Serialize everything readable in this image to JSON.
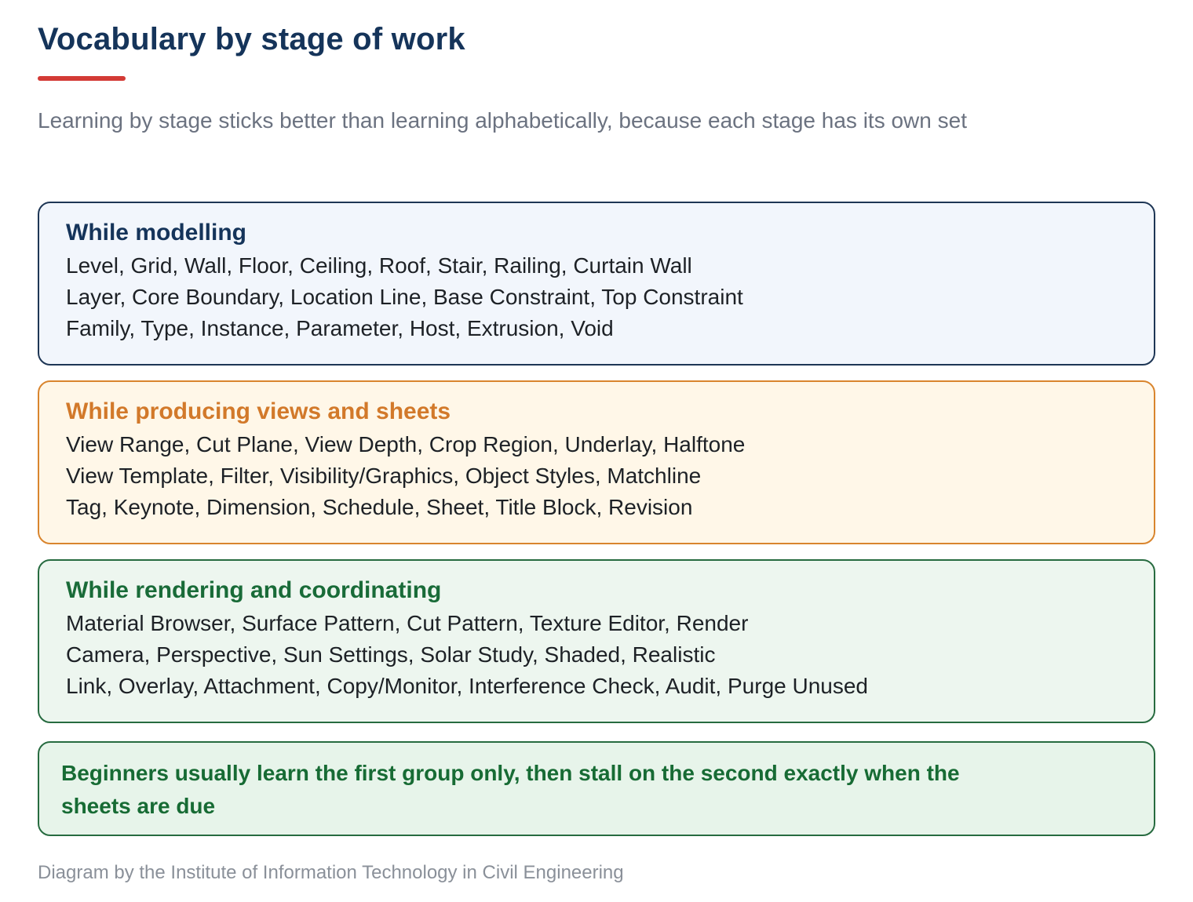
{
  "header": {
    "title": "Vocabulary by stage of work",
    "subtitle": "Learning by stage sticks better than learning alphabetically, because each stage has its own set"
  },
  "colors": {
    "title": "#15345a",
    "accent_rule": "#d33a35",
    "modelling_border": "#1e3655",
    "views_accent": "#d9852e",
    "render_accent": "#276b40"
  },
  "stages": [
    {
      "heading": "While modelling",
      "lines": [
        "Level, Grid, Wall, Floor, Ceiling, Roof, Stair, Railing, Curtain Wall",
        "Layer, Core Boundary, Location Line, Base Constraint, Top Constraint",
        "Family, Type, Instance, Parameter, Host, Extrusion, Void"
      ]
    },
    {
      "heading": "While producing views and sheets",
      "lines": [
        "View Range, Cut Plane, View Depth, Crop Region, Underlay, Halftone",
        "View Template, Filter, Visibility/Graphics, Object Styles, Matchline",
        "Tag, Keynote, Dimension, Schedule, Sheet, Title Block, Revision"
      ]
    },
    {
      "heading": "While rendering and coordinating",
      "lines": [
        "Material Browser, Surface Pattern, Cut Pattern, Texture Editor, Render",
        "Camera, Perspective, Sun Settings, Solar Study, Shaded, Realistic",
        "Link, Overlay, Attachment, Copy/Monitor, Interference Check, Audit, Purge Unused"
      ]
    }
  ],
  "note": {
    "text": "Beginners usually learn the first group only, then stall on the second exactly when the sheets are due"
  },
  "footer": {
    "credit": "Diagram by the Institute of Information Technology in Civil Engineering"
  }
}
